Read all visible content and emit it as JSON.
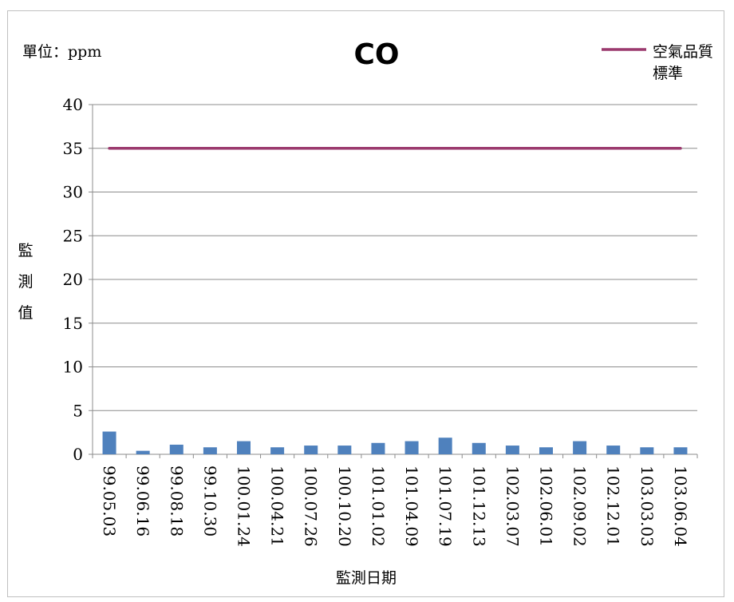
{
  "chart_data": {
    "type": "bar",
    "title": "CO",
    "unit_label": "單位：ppm",
    "ylabel": "監測值",
    "xlabel": "監測日期",
    "ylim": [
      0,
      40
    ],
    "yticks": [
      0,
      5,
      10,
      15,
      20,
      25,
      30,
      35,
      40
    ],
    "grid": true,
    "legend_position": "top-right",
    "categories": [
      "99.05.03",
      "99.06.16",
      "99.08.18",
      "99.10.30",
      "100.01.24",
      "100.04.21",
      "100.07.26",
      "100.10.20",
      "101.01.02",
      "101.04.09",
      "101.07.19",
      "101.12.13",
      "102.03.07",
      "102.06.01",
      "102.09.02",
      "102.12.01",
      "103.03.03",
      "103.06.04"
    ],
    "series": [
      {
        "name": "",
        "kind": "bar",
        "color": "#4f81bd",
        "values": [
          2.6,
          0.4,
          1.1,
          0.8,
          1.5,
          0.8,
          1.0,
          1.0,
          1.3,
          1.5,
          1.9,
          1.3,
          1.0,
          0.8,
          1.5,
          1.0,
          0.8,
          0.8
        ]
      },
      {
        "name": "空氣品質標準",
        "kind": "line",
        "color": "#9b3a6e",
        "values": [
          35,
          35,
          35,
          35,
          35,
          35,
          35,
          35,
          35,
          35,
          35,
          35,
          35,
          35,
          35,
          35,
          35,
          35
        ]
      }
    ],
    "legend": {
      "line1": "空氣品質",
      "line2": "標準"
    }
  }
}
